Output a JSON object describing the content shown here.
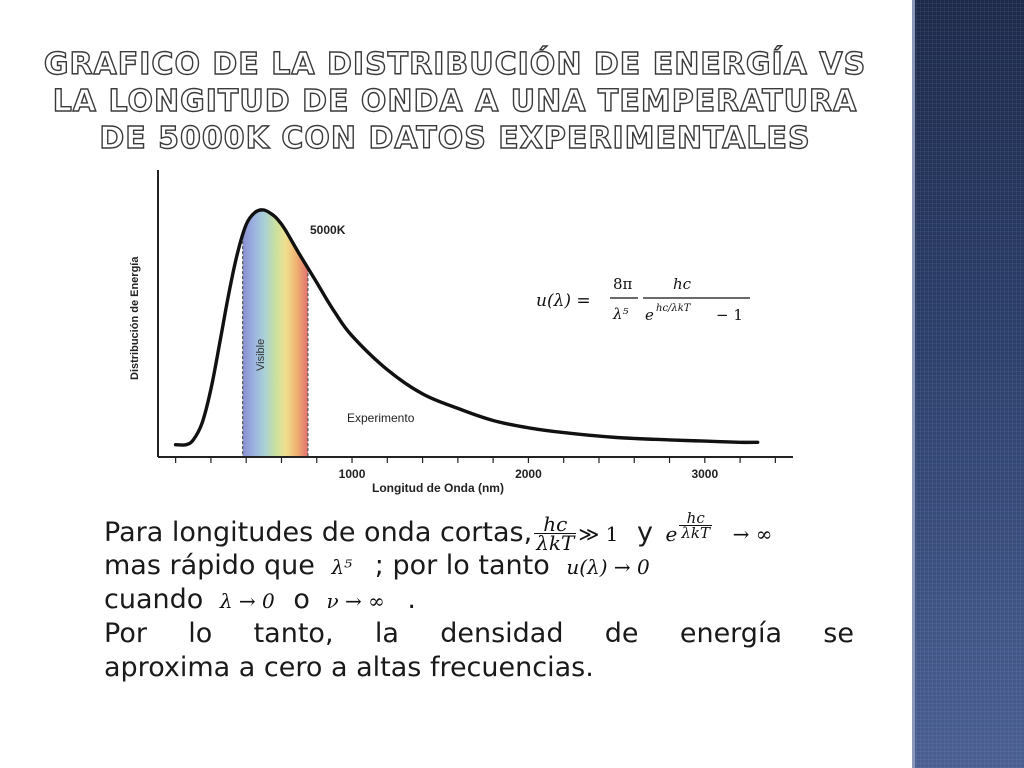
{
  "slide": {
    "title": "Grafico de la distribución de energía vs la longitud de onda a una temperatura de 5000K con datos experimentales",
    "line1_text": "Para longitudes de onda cortas,",
    "line1_y": "y",
    "line2_text1": "mas rápido que",
    "line2_text2": "; por lo tanto",
    "line3_text1": "cuando",
    "line3_text2": "o",
    "line3_text3": ".",
    "line4": "Por lo tanto, la densidad de energía se",
    "line5": "aproxima a cero a altas frecuencias.",
    "math": {
      "hc": "hc",
      "lambda_kT": "λkT",
      "much_greater_1": "≫ 1",
      "e": "e",
      "to_infinity": "→ ∞",
      "lambda5": "λ⁵",
      "u_to_zero": "u(λ) → 0",
      "lambda_to_zero": "λ → 0",
      "nu_to_infinity": "ν → ∞"
    }
  },
  "chart_data": {
    "type": "line",
    "xlabel": "Longitud de Onda (nm)",
    "ylabel": "Distribución de Energía",
    "x_ticks": [
      1000,
      2000,
      3000
    ],
    "xlim": [
      -100,
      3500
    ],
    "series": [
      {
        "name": "Experimento",
        "x": [
          0,
          60,
          100,
          150,
          200,
          250,
          300,
          350,
          400,
          450,
          500,
          550,
          580,
          620,
          700,
          800,
          900,
          1000,
          1200,
          1400,
          1600,
          1800,
          2000,
          2200,
          2500,
          2800,
          3000,
          3200,
          3300
        ],
        "y": [
          0.03,
          0.03,
          0.05,
          0.12,
          0.26,
          0.45,
          0.65,
          0.82,
          0.94,
          0.99,
          1.0,
          0.98,
          0.96,
          0.92,
          0.82,
          0.7,
          0.58,
          0.48,
          0.34,
          0.24,
          0.18,
          0.13,
          0.1,
          0.08,
          0.06,
          0.05,
          0.045,
          0.04,
          0.04
        ]
      }
    ],
    "annotations": {
      "temperature": "5000K",
      "visible_label": "Visible",
      "experiment_label": "Experimento",
      "visible_band_nm": [
        380,
        750
      ]
    },
    "formula": {
      "lhs": "u(λ) =",
      "coef_num": "8π",
      "coef_den": "λ⁵",
      "frac_num": "hc",
      "frac_den_base": "e",
      "frac_den_exp": "hc/λkT",
      "frac_den_tail": "− 1"
    },
    "colors": {
      "curve": "#111111",
      "axis": "#222222",
      "spectrum": [
        "#8a8fd0",
        "#9ab0e0",
        "#a8d0d8",
        "#c8e0a0",
        "#f0e090",
        "#f0b070",
        "#e07070"
      ]
    }
  }
}
